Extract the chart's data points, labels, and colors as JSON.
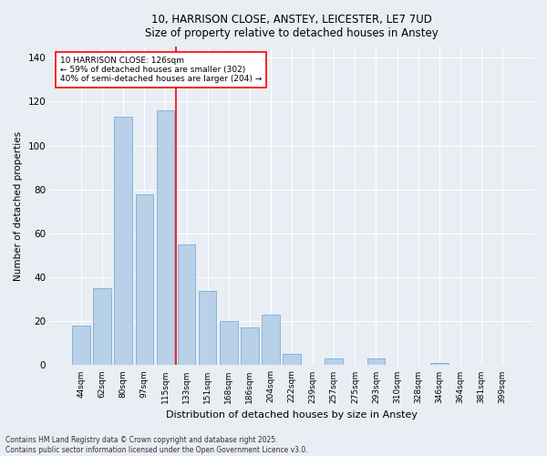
{
  "title_line1": "10, HARRISON CLOSE, ANSTEY, LEICESTER, LE7 7UD",
  "title_line2": "Size of property relative to detached houses in Anstey",
  "xlabel": "Distribution of detached houses by size in Anstey",
  "ylabel": "Number of detached properties",
  "categories": [
    "44sqm",
    "62sqm",
    "80sqm",
    "97sqm",
    "115sqm",
    "133sqm",
    "151sqm",
    "168sqm",
    "186sqm",
    "204sqm",
    "222sqm",
    "239sqm",
    "257sqm",
    "275sqm",
    "293sqm",
    "310sqm",
    "328sqm",
    "346sqm",
    "364sqm",
    "381sqm",
    "399sqm"
  ],
  "values": [
    18,
    35,
    113,
    78,
    116,
    55,
    34,
    20,
    17,
    23,
    5,
    0,
    3,
    0,
    3,
    0,
    0,
    1,
    0,
    0,
    0
  ],
  "bar_color": "#b8d0e8",
  "bar_edge_color": "#7aafd4",
  "vline_color": "red",
  "annotation_title": "10 HARRISON CLOSE: 126sqm",
  "annotation_line1": "← 59% of detached houses are smaller (302)",
  "annotation_line2": "40% of semi-detached houses are larger (204) →",
  "ylim": [
    0,
    145
  ],
  "yticks": [
    0,
    20,
    40,
    60,
    80,
    100,
    120,
    140
  ],
  "footer_line1": "Contains HM Land Registry data © Crown copyright and database right 2025.",
  "footer_line2": "Contains public sector information licensed under the Open Government Licence v3.0.",
  "bg_color": "#e8eef4",
  "plot_bg_color": "#e8eef4"
}
